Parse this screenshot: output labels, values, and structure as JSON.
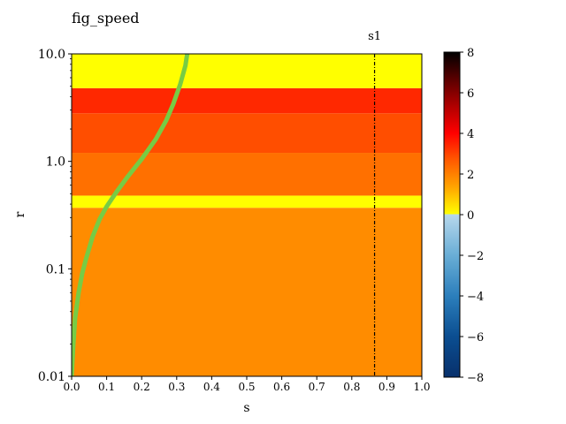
{
  "chart_data": {
    "type": "heatmap",
    "title": "fig_speed",
    "xlabel": "s",
    "ylabel": "r",
    "xlim": [
      0,
      1
    ],
    "ylim": [
      0.01,
      10
    ],
    "yscale": "log",
    "grid": false,
    "x_ticks": [
      "0.0",
      "0.1",
      "0.2",
      "0.3",
      "0.4",
      "0.5",
      "0.6",
      "0.7",
      "0.8",
      "0.9",
      "1.0"
    ],
    "y_ticks": [
      {
        "value": 0.01,
        "label": "0.01"
      },
      {
        "value": 0.1,
        "label": "0.1"
      },
      {
        "value": 1,
        "label": "1.0"
      },
      {
        "value": 10,
        "label": "10.0"
      }
    ],
    "bands": [
      {
        "r_from": 0.01,
        "r_to": 0.37,
        "level": 1.6,
        "color": "#ff8c00"
      },
      {
        "r_from": 0.37,
        "r_to": 0.48,
        "level": 0.2,
        "color": "#ffff00"
      },
      {
        "r_from": 0.48,
        "r_to": 1.2,
        "level": 2.3,
        "color": "#ff7000"
      },
      {
        "r_from": 1.2,
        "r_to": 2.8,
        "level": 2.9,
        "color": "#ff4e00"
      },
      {
        "r_from": 2.8,
        "r_to": 4.8,
        "level": 3.5,
        "color": "#ff2800"
      },
      {
        "r_from": 4.8,
        "r_to": 10,
        "level": 0.2,
        "color": "#ffff00"
      }
    ],
    "curve": {
      "color": "#77cc44",
      "points": [
        [
          0.0,
          0.01
        ],
        [
          0.005,
          0.02
        ],
        [
          0.01,
          0.035
        ],
        [
          0.02,
          0.06
        ],
        [
          0.03,
          0.09
        ],
        [
          0.04,
          0.12
        ],
        [
          0.06,
          0.2
        ],
        [
          0.08,
          0.29
        ],
        [
          0.1,
          0.38
        ],
        [
          0.13,
          0.53
        ],
        [
          0.16,
          0.72
        ],
        [
          0.2,
          1.05
        ],
        [
          0.24,
          1.6
        ],
        [
          0.27,
          2.4
        ],
        [
          0.29,
          3.4
        ],
        [
          0.31,
          5.2
        ],
        [
          0.325,
          7.8
        ],
        [
          0.33,
          10
        ]
      ]
    },
    "vline": {
      "x": 0.865,
      "label": "s1"
    },
    "colorbar": {
      "min": -8,
      "max": 8,
      "ticks": [
        "8",
        "6",
        "4",
        "2",
        "0",
        "−2",
        "−4",
        "−6",
        "−8"
      ],
      "tick_values": [
        8,
        6,
        4,
        2,
        0,
        -2,
        -4,
        -6,
        -8
      ],
      "positive_colors": [
        "#ffff00",
        "#ffa500",
        "#ff5a00",
        "#ff0000",
        "#b00000",
        "#5a0000",
        "#000000"
      ],
      "negative_colors": [
        "#b8d8ec",
        "#6aaed6",
        "#2c7fbc",
        "#0b4e91",
        "#08306b"
      ]
    }
  }
}
